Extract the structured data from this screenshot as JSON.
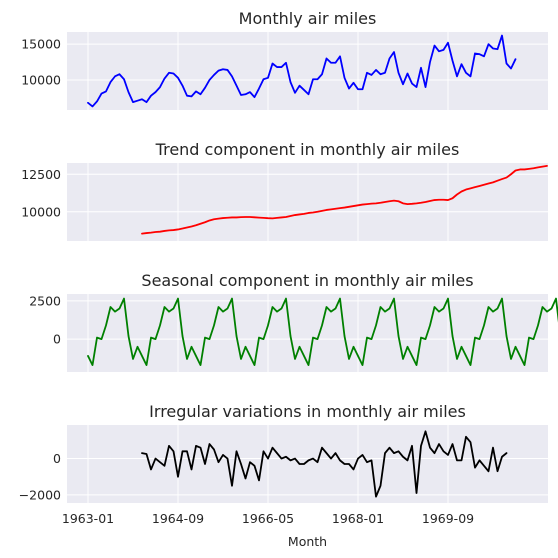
{
  "chart_data": [
    {
      "type": "line",
      "title": "Monthly air miles",
      "color": "#0000ff",
      "x_start": "1963-01",
      "ylim": [
        5800,
        16700
      ],
      "yticks": [
        10000,
        15000
      ],
      "ytick_labels": [
        "10000",
        "15000"
      ],
      "values": [
        6800,
        6300,
        7000,
        8100,
        8400,
        9700,
        10500,
        10800,
        10100,
        8300,
        6900,
        7100,
        7300,
        6900,
        7800,
        8300,
        9000,
        10200,
        11000,
        10900,
        10300,
        9200,
        7800,
        7700,
        8400,
        8000,
        8900,
        10000,
        10700,
        11300,
        11500,
        11400,
        10500,
        9200,
        7900,
        8000,
        8300,
        7600,
        8800,
        10100,
        10300,
        12300,
        11800,
        11800,
        12400,
        9700,
        8200,
        9200,
        8600,
        8000,
        10100,
        10100,
        10800,
        13000,
        12400,
        12400,
        13300,
        10300,
        8800,
        9600,
        8700,
        8700,
        11000,
        10700,
        11400,
        10800,
        11000,
        13000,
        13900,
        11000,
        9400,
        10900,
        9500,
        9000,
        11700,
        9000,
        12500,
        14800,
        14000,
        14200,
        15200,
        12700,
        10500,
        12200,
        11000,
        10500,
        13700,
        13600,
        13300,
        15000,
        14400,
        14300,
        16200,
        12300,
        11600,
        12900
      ]
    },
    {
      "type": "line",
      "title": "Trend component in monthly air miles",
      "color": "#ff0000",
      "x_start": "1963-01",
      "ylim": [
        8050,
        13250
      ],
      "yticks": [
        10000,
        12500
      ],
      "ytick_labels": [
        "10000",
        "12500"
      ],
      "values": [
        null,
        null,
        null,
        null,
        null,
        null,
        null,
        null,
        null,
        null,
        null,
        null,
        8540,
        8580,
        8610,
        8650,
        8670,
        8720,
        8760,
        8780,
        8820,
        8880,
        8950,
        9020,
        9100,
        9200,
        9300,
        9420,
        9500,
        9540,
        9580,
        9600,
        9620,
        9620,
        9640,
        9650,
        9650,
        9630,
        9610,
        9590,
        9570,
        9560,
        9590,
        9620,
        9650,
        9720,
        9780,
        9820,
        9860,
        9920,
        9950,
        10000,
        10060,
        10120,
        10160,
        10200,
        10240,
        10280,
        10330,
        10380,
        10430,
        10480,
        10510,
        10540,
        10560,
        10600,
        10650,
        10700,
        10740,
        10700,
        10560,
        10510,
        10530,
        10560,
        10600,
        10650,
        10720,
        10780,
        10800,
        10800,
        10780,
        10900,
        11150,
        11350,
        11480,
        11560,
        11640,
        11720,
        11800,
        11880,
        11960,
        12070,
        12180,
        12280,
        12500,
        12750,
        12820,
        12820,
        12860,
        12900,
        12960,
        13010,
        13060
      ]
    },
    {
      "type": "line",
      "title": "Seasonal component in monthly air miles",
      "color": "#008000",
      "x_start": "1963-01",
      "ylim": [
        -2150,
        2950
      ],
      "yticks": [
        0,
        2500
      ],
      "ytick_labels": [
        "0",
        "2500"
      ],
      "values": [
        -1100,
        -1700,
        100,
        0,
        900,
        2100,
        1800,
        2000,
        2650,
        200,
        -1300,
        -500,
        -1100,
        -1700,
        100,
        0,
        900,
        2100,
        1800,
        2000,
        2650,
        200,
        -1300,
        -500,
        -1100,
        -1700,
        100,
        0,
        900,
        2100,
        1800,
        2000,
        2650,
        200,
        -1300,
        -500,
        -1100,
        -1700,
        100,
        0,
        900,
        2100,
        1800,
        2000,
        2650,
        200,
        -1300,
        -500,
        -1100,
        -1700,
        100,
        0,
        900,
        2100,
        1800,
        2000,
        2650,
        200,
        -1300,
        -500,
        -1100,
        -1700,
        100,
        0,
        900,
        2100,
        1800,
        2000,
        2650,
        200,
        -1300,
        -500,
        -1100,
        -1700,
        100,
        0,
        900,
        2100,
        1800,
        2000,
        2650,
        200,
        -1300,
        -500,
        -1100,
        -1700,
        100,
        0,
        900,
        2100,
        1800,
        2000,
        2650,
        200,
        -1300,
        -500,
        -1100,
        -1700,
        100,
        0,
        900,
        2100,
        1800,
        2000,
        2650,
        200,
        -1300,
        -500
      ]
    },
    {
      "type": "line",
      "title": "Irregular variations in monthly air miles",
      "color": "#000000",
      "x_start": "1963-01",
      "xlabel": "Month",
      "xticks": [
        "1963-01",
        "1964-09",
        "1966-05",
        "1968-01",
        "1969-09"
      ],
      "xtick_index": [
        0,
        20,
        40,
        60,
        80
      ],
      "ylim": [
        -2450,
        1850
      ],
      "yticks": [
        -2000,
        0
      ],
      "ytick_labels": [
        "−2000",
        "0"
      ],
      "values": [
        null,
        null,
        null,
        null,
        null,
        null,
        null,
        null,
        null,
        null,
        null,
        null,
        300,
        250,
        -600,
        0,
        -200,
        -400,
        700,
        400,
        -1000,
        400,
        400,
        -600,
        700,
        600,
        -300,
        800,
        500,
        -200,
        200,
        0,
        -1500,
        400,
        -300,
        -1100,
        -200,
        -400,
        -1200,
        400,
        0,
        600,
        300,
        0,
        100,
        -100,
        0,
        -300,
        -300,
        -100,
        0,
        -200,
        600,
        300,
        0,
        300,
        -100,
        -300,
        -300,
        -600,
        0,
        200,
        -200,
        -100,
        -2100,
        -1500,
        300,
        600,
        300,
        400,
        100,
        -100,
        700,
        -1900,
        700,
        1500,
        600,
        300,
        800,
        400,
        200,
        800,
        -100,
        -100,
        1200,
        900,
        -500,
        -100,
        -400,
        -700,
        600,
        -700,
        100,
        300
      ]
    }
  ]
}
